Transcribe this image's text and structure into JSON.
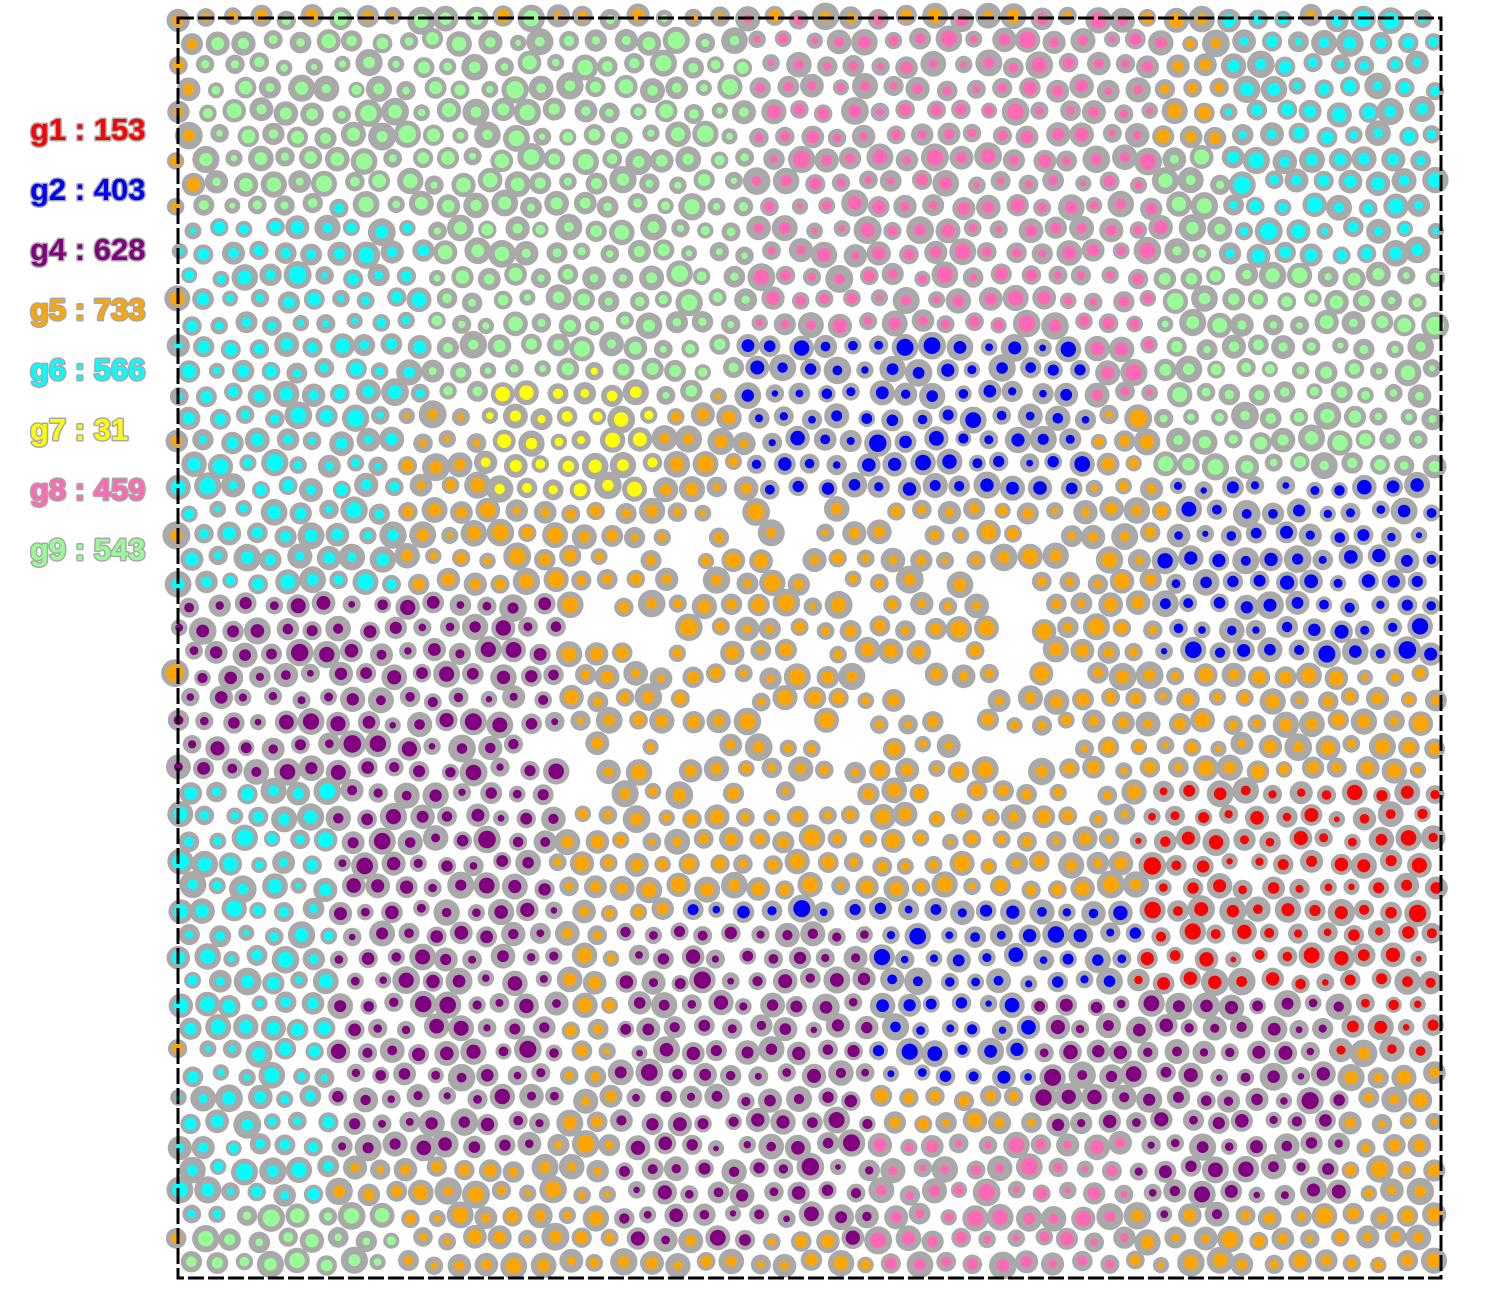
{
  "chart_data": {
    "type": "scatter",
    "title": "",
    "xlabel": "",
    "ylabel": "",
    "grid": false,
    "legend_placement": "left",
    "frame_color": "#000000",
    "outer_cell_color": "#a9a9a9",
    "background_color": "#ffffff",
    "groups": [
      {
        "label": "g1",
        "count": "153",
        "color": "#ff0000"
      },
      {
        "label": "g2",
        "count": "403",
        "color": "#0000ff"
      },
      {
        "label": "g4",
        "count": "628",
        "color": "#800080"
      },
      {
        "label": "g5",
        "count": "733",
        "color": "#ffa500"
      },
      {
        "label": "g6",
        "count": "566",
        "color": "#00ffff"
      },
      {
        "label": "g7",
        "count": "31",
        "color": "#ffff00"
      },
      {
        "label": "g8",
        "count": "459",
        "color": "#ff69b4"
      },
      {
        "label": "g9",
        "count": "543",
        "color": "#98fb98"
      }
    ],
    "regions": [
      {
        "group": "g9",
        "x": [
          0.02,
          0.45
        ],
        "y": [
          0.68,
          1.0
        ]
      },
      {
        "group": "g8",
        "x": [
          0.45,
          0.78
        ],
        "y": [
          0.7,
          1.0
        ]
      },
      {
        "group": "g9",
        "x": [
          0.78,
          1.0
        ],
        "y": [
          0.62,
          0.9
        ]
      },
      {
        "group": "g6",
        "x": [
          0.0,
          0.2
        ],
        "y": [
          0.55,
          0.85
        ]
      },
      {
        "group": "g6",
        "x": [
          0.83,
          1.0
        ],
        "y": [
          0.8,
          1.0
        ]
      },
      {
        "group": "g5",
        "x": [
          0.18,
          0.78
        ],
        "y": [
          0.3,
          0.7
        ]
      },
      {
        "group": "g2",
        "x": [
          0.45,
          0.72
        ],
        "y": [
          0.62,
          0.75
        ]
      },
      {
        "group": "g2",
        "x": [
          0.78,
          1.0
        ],
        "y": [
          0.48,
          0.63
        ]
      },
      {
        "group": "g2",
        "x": [
          0.4,
          0.78
        ],
        "y": [
          0.15,
          0.3
        ]
      },
      {
        "group": "g1",
        "x": [
          0.76,
          1.0
        ],
        "y": [
          0.18,
          0.4
        ]
      },
      {
        "group": "g4",
        "x": [
          0.0,
          0.3
        ],
        "y": [
          0.1,
          0.55
        ]
      },
      {
        "group": "g4",
        "x": [
          0.35,
          0.55
        ],
        "y": [
          0.03,
          0.28
        ]
      },
      {
        "group": "g4",
        "x": [
          0.68,
          0.92
        ],
        "y": [
          0.05,
          0.22
        ]
      },
      {
        "group": "g6",
        "x": [
          0.0,
          0.12
        ],
        "y": [
          0.05,
          0.4
        ]
      },
      {
        "group": "g9",
        "x": [
          0.0,
          0.18
        ],
        "y": [
          0.0,
          0.05
        ]
      },
      {
        "group": "g8",
        "x": [
          0.55,
          0.75
        ],
        "y": [
          0.0,
          0.12
        ]
      },
      {
        "group": "g7",
        "x": [
          0.24,
          0.38
        ],
        "y": [
          0.62,
          0.72
        ]
      }
    ]
  }
}
